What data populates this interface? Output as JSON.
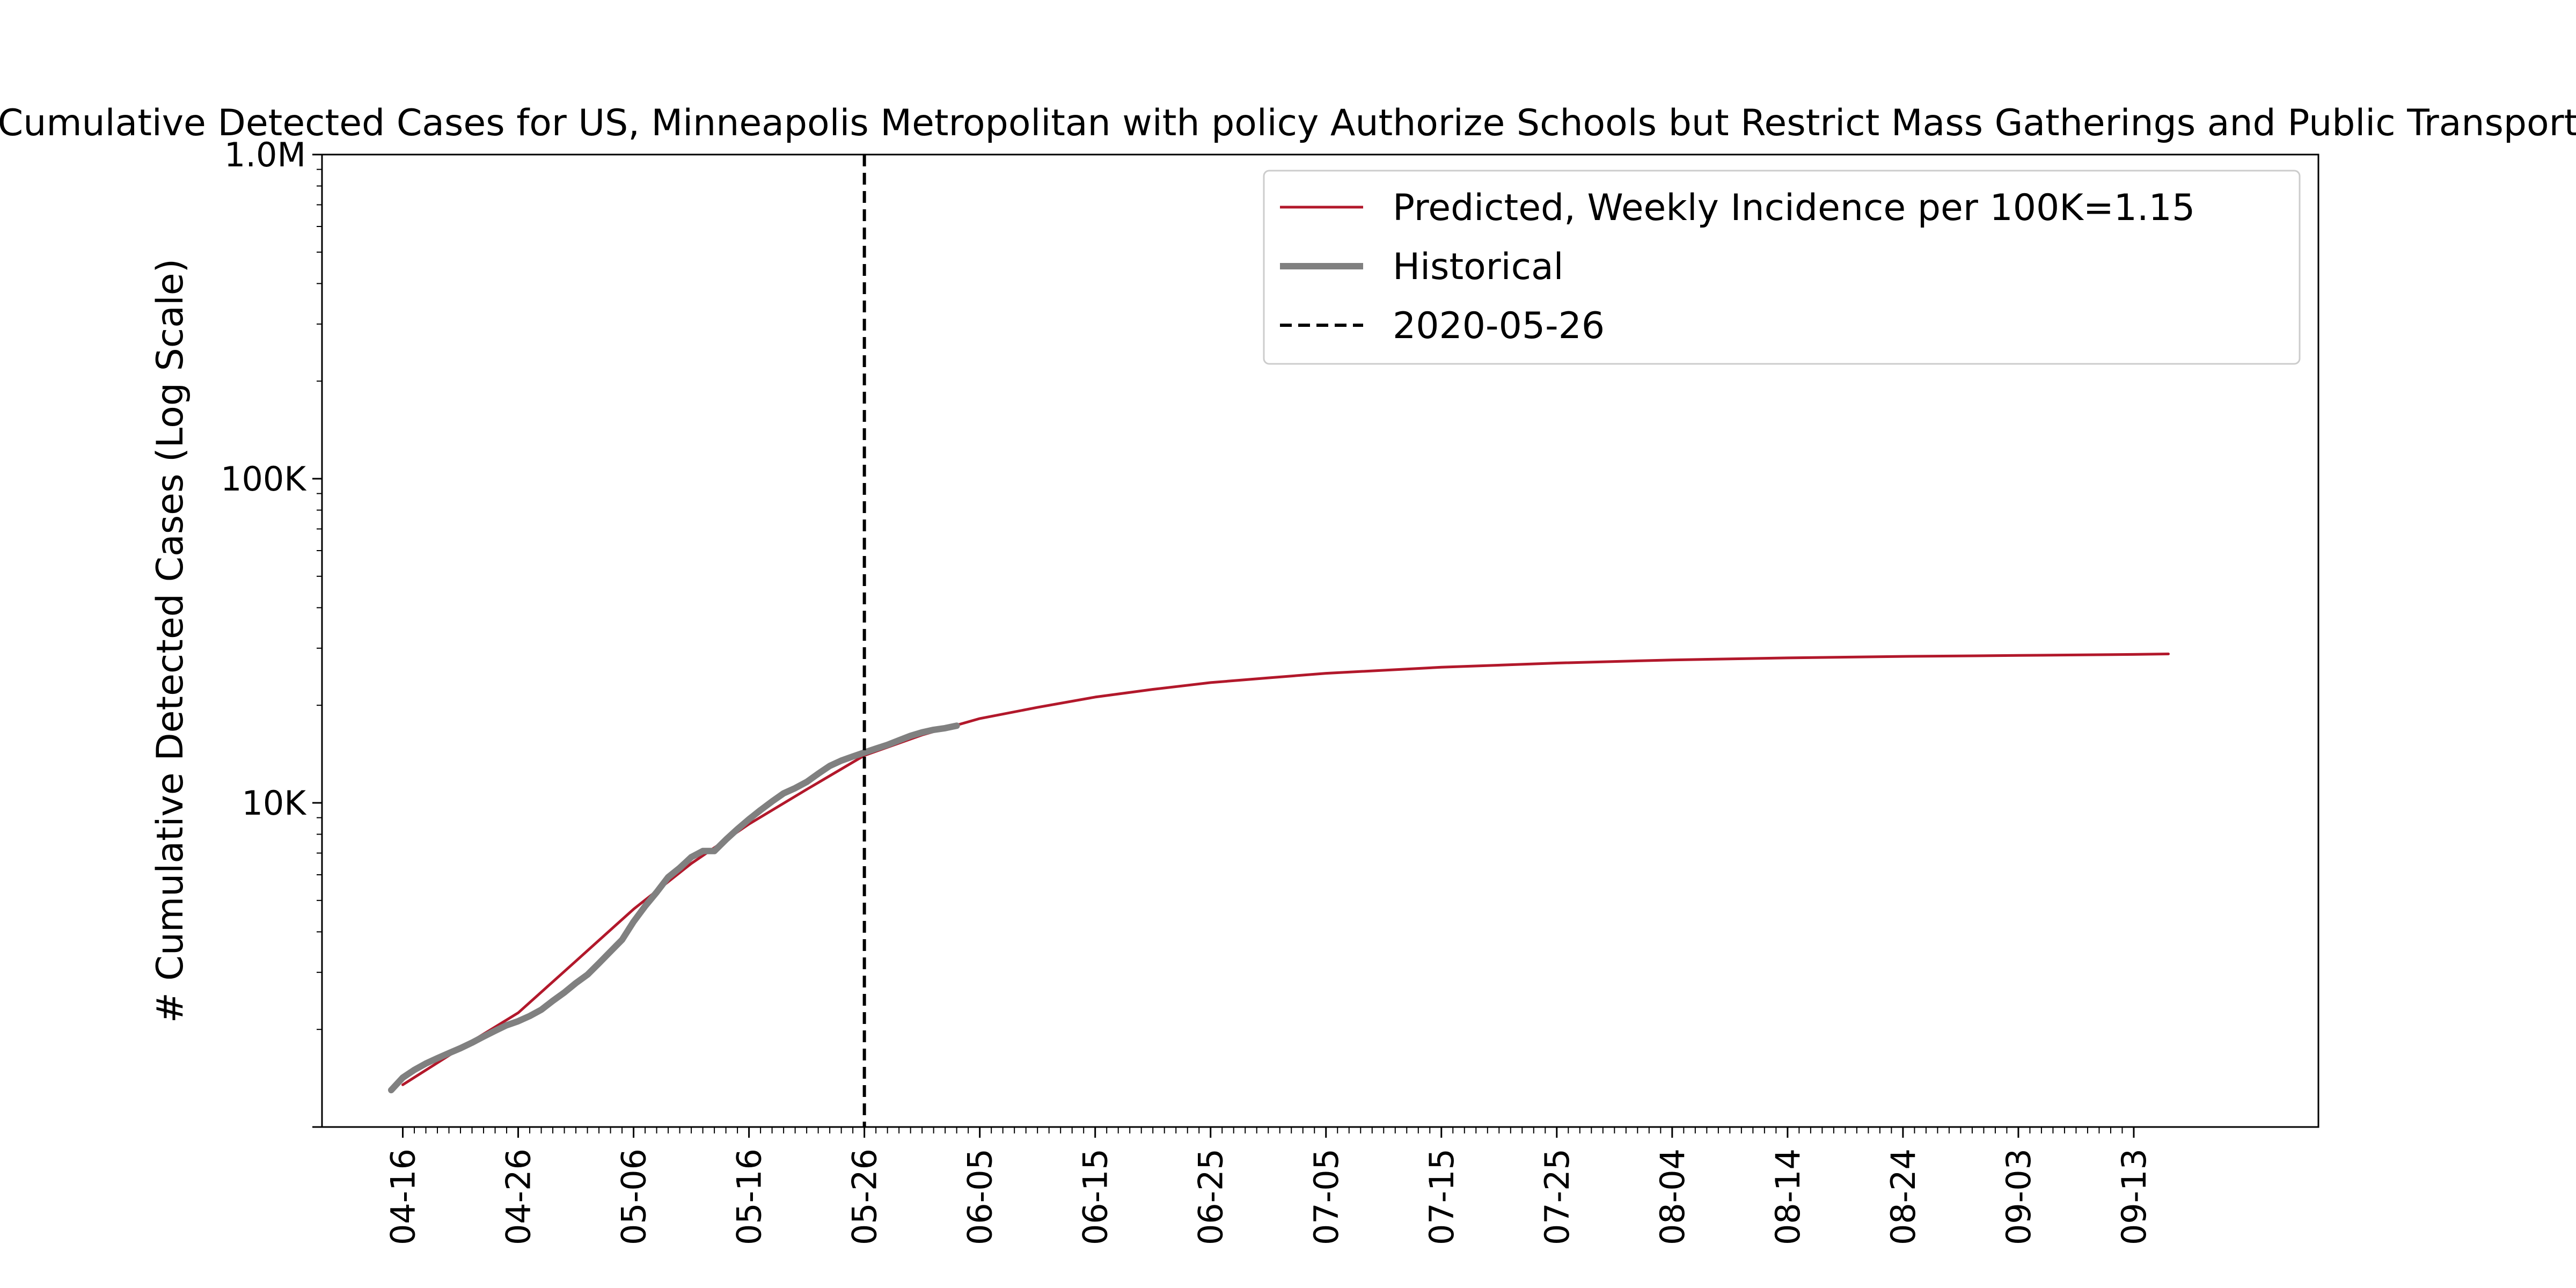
{
  "chart_data": {
    "type": "line",
    "title": "Cumulative Detected Cases for US, Minneapolis Metropolitan with policy Authorize Schools but Restrict Mass Gatherings and Public Transport",
    "xlabel": "",
    "ylabel": "# Cumulative Detected Cases (Log Scale)",
    "y_scale": "log",
    "ylim": [
      1000,
      1000000
    ],
    "x_range": [
      "2020-04-09",
      "2020-09-29"
    ],
    "y_tick_labels": [
      {
        "value": 10000,
        "label": "10K"
      },
      {
        "value": 100000,
        "label": "100K"
      },
      {
        "value": 1000000,
        "label": "1.0M"
      }
    ],
    "x_tick_labels": [
      {
        "date": "2020-04-16",
        "label": "04-16"
      },
      {
        "date": "2020-04-26",
        "label": "04-26"
      },
      {
        "date": "2020-05-06",
        "label": "05-06"
      },
      {
        "date": "2020-05-16",
        "label": "05-16"
      },
      {
        "date": "2020-05-26",
        "label": "05-26"
      },
      {
        "date": "2020-06-05",
        "label": "06-05"
      },
      {
        "date": "2020-06-15",
        "label": "06-15"
      },
      {
        "date": "2020-06-25",
        "label": "06-25"
      },
      {
        "date": "2020-07-05",
        "label": "07-05"
      },
      {
        "date": "2020-07-15",
        "label": "07-15"
      },
      {
        "date": "2020-07-25",
        "label": "07-25"
      },
      {
        "date": "2020-08-04",
        "label": "08-04"
      },
      {
        "date": "2020-08-14",
        "label": "08-14"
      },
      {
        "date": "2020-08-24",
        "label": "08-24"
      },
      {
        "date": "2020-09-03",
        "label": "09-03"
      },
      {
        "date": "2020-09-13",
        "label": "09-13"
      }
    ],
    "minor_ticks": "daily",
    "grid": false,
    "legend_position": "top-right",
    "series": [
      {
        "name": "Predicted, Weekly Incidence per 100K=1.15",
        "color": "#b2182b",
        "style": "solid",
        "points": [
          [
            "2020-04-16",
            1350
          ],
          [
            "2020-04-21",
            1750
          ],
          [
            "2020-04-26",
            2250
          ],
          [
            "2020-05-01",
            3250
          ],
          [
            "2020-05-06",
            4700
          ],
          [
            "2020-05-11",
            6500
          ],
          [
            "2020-05-16",
            8600
          ],
          [
            "2020-05-21",
            11000
          ],
          [
            "2020-05-26",
            14000
          ],
          [
            "2020-05-31",
            16200
          ],
          [
            "2020-06-05",
            18200
          ],
          [
            "2020-06-10",
            19700
          ],
          [
            "2020-06-15",
            21200
          ],
          [
            "2020-06-20",
            22400
          ],
          [
            "2020-06-25",
            23500
          ],
          [
            "2020-06-30",
            24300
          ],
          [
            "2020-07-05",
            25100
          ],
          [
            "2020-07-15",
            26200
          ],
          [
            "2020-07-25",
            27000
          ],
          [
            "2020-08-04",
            27600
          ],
          [
            "2020-08-14",
            28000
          ],
          [
            "2020-08-24",
            28300
          ],
          [
            "2020-09-03",
            28500
          ],
          [
            "2020-09-13",
            28700
          ],
          [
            "2020-09-16",
            28800
          ]
        ]
      },
      {
        "name": "Historical",
        "color": "#808080",
        "style": "solid-thick",
        "points": [
          [
            "2020-04-15",
            1300
          ],
          [
            "2020-04-16",
            1420
          ],
          [
            "2020-04-17",
            1500
          ],
          [
            "2020-04-18",
            1570
          ],
          [
            "2020-04-19",
            1630
          ],
          [
            "2020-04-20",
            1690
          ],
          [
            "2020-04-21",
            1750
          ],
          [
            "2020-04-22",
            1820
          ],
          [
            "2020-04-23",
            1900
          ],
          [
            "2020-04-24",
            1980
          ],
          [
            "2020-04-25",
            2060
          ],
          [
            "2020-04-26",
            2120
          ],
          [
            "2020-04-27",
            2200
          ],
          [
            "2020-04-28",
            2300
          ],
          [
            "2020-04-29",
            2450
          ],
          [
            "2020-04-30",
            2600
          ],
          [
            "2020-05-01",
            2780
          ],
          [
            "2020-05-02",
            2950
          ],
          [
            "2020-05-03",
            3200
          ],
          [
            "2020-05-04",
            3480
          ],
          [
            "2020-05-05",
            3780
          ],
          [
            "2020-05-06",
            4300
          ],
          [
            "2020-05-07",
            4800
          ],
          [
            "2020-05-08",
            5300
          ],
          [
            "2020-05-09",
            5900
          ],
          [
            "2020-05-10",
            6300
          ],
          [
            "2020-05-11",
            6800
          ],
          [
            "2020-05-12",
            7100
          ],
          [
            "2020-05-13",
            7100
          ],
          [
            "2020-05-14",
            7700
          ],
          [
            "2020-05-15",
            8300
          ],
          [
            "2020-05-16",
            8900
          ],
          [
            "2020-05-17",
            9500
          ],
          [
            "2020-05-18",
            10100
          ],
          [
            "2020-05-19",
            10700
          ],
          [
            "2020-05-20",
            11100
          ],
          [
            "2020-05-21",
            11600
          ],
          [
            "2020-05-22",
            12300
          ],
          [
            "2020-05-23",
            13000
          ],
          [
            "2020-05-24",
            13500
          ],
          [
            "2020-05-25",
            13900
          ],
          [
            "2020-05-26",
            14300
          ],
          [
            "2020-05-27",
            14700
          ],
          [
            "2020-05-28",
            15100
          ],
          [
            "2020-05-29",
            15600
          ],
          [
            "2020-05-30",
            16100
          ],
          [
            "2020-05-31",
            16500
          ],
          [
            "2020-06-01",
            16800
          ],
          [
            "2020-06-02",
            17000
          ],
          [
            "2020-06-03",
            17300
          ]
        ]
      },
      {
        "name": "2020-05-26",
        "color": "#000000",
        "style": "dashed",
        "vline_date": "2020-05-26"
      }
    ]
  }
}
